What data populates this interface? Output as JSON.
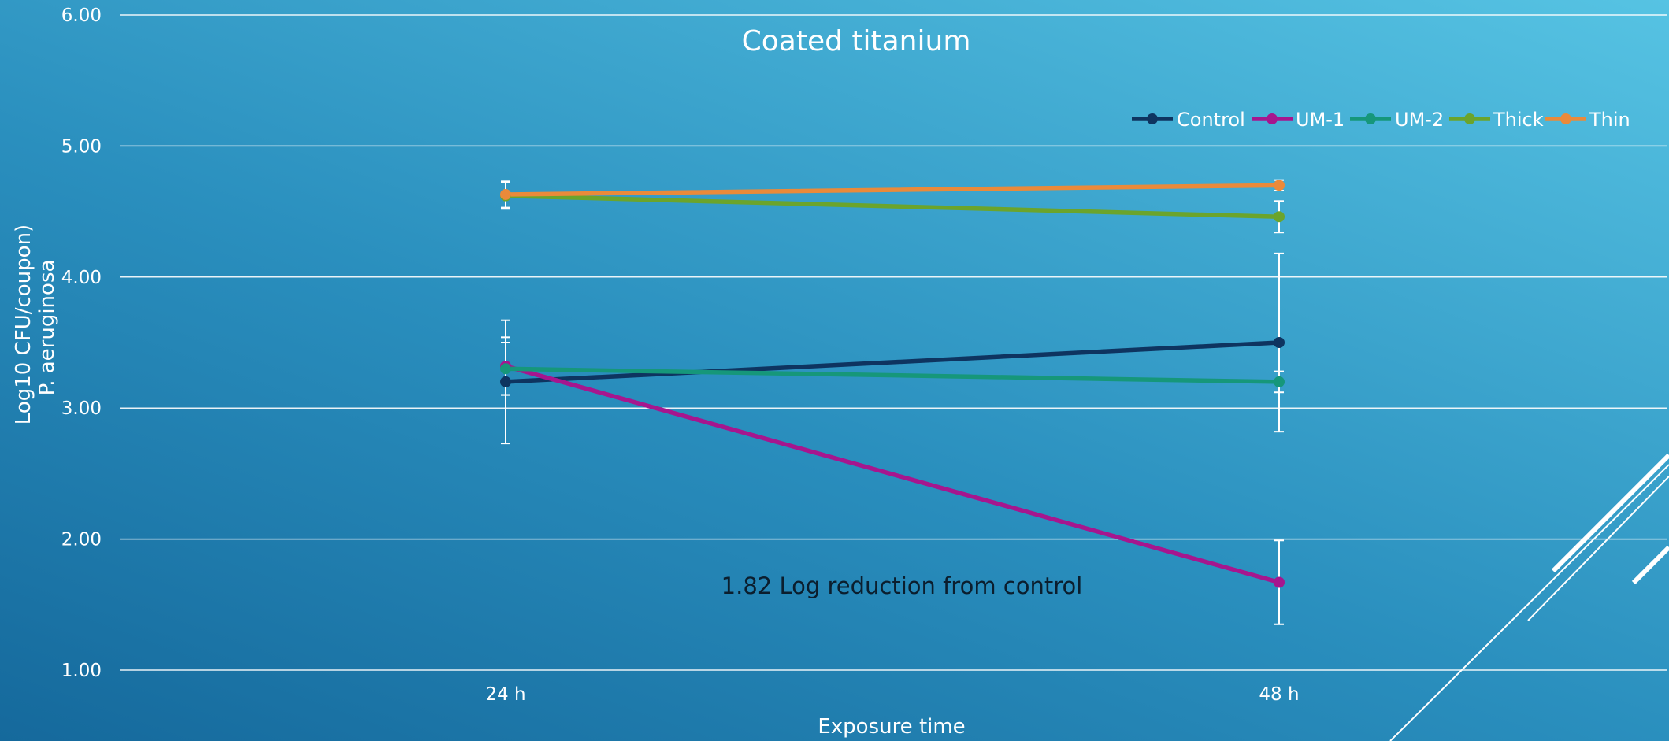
{
  "chart_data": {
    "type": "line",
    "title": "Coated titanium",
    "xlabel": "Exposure time",
    "ylabel_lines": [
      "Log10 CFU/coupon)",
      "P. aeruginosa"
    ],
    "categories": [
      "24 h",
      "48 h"
    ],
    "ylim": [
      1.0,
      6.0
    ],
    "yticks": [
      "1.00",
      "2.00",
      "3.00",
      "4.00",
      "5.00",
      "6.00"
    ],
    "grid": true,
    "legend_position": "top-right",
    "series": [
      {
        "name": "Control",
        "color": "#0e3460",
        "values": [
          3.2,
          3.5
        ],
        "errors": [
          0.47,
          0.68
        ]
      },
      {
        "name": "UM-1",
        "color": "#a6168e",
        "values": [
          3.32,
          1.67
        ],
        "errors": [
          0.22,
          0.32
        ]
      },
      {
        "name": "UM-2",
        "color": "#16977a",
        "values": [
          3.3,
          3.2
        ],
        "errors": [
          0.2,
          0.08
        ]
      },
      {
        "name": "Thick",
        "color": "#6ba42c",
        "values": [
          4.62,
          4.46
        ],
        "errors": [
          0.1,
          0.12
        ]
      },
      {
        "name": "Thin",
        "color": "#ea8a3a",
        "values": [
          4.63,
          4.7
        ],
        "errors": [
          0.1,
          0.04
        ]
      }
    ],
    "annotations": [
      "1.82 Log reduction from control"
    ]
  }
}
